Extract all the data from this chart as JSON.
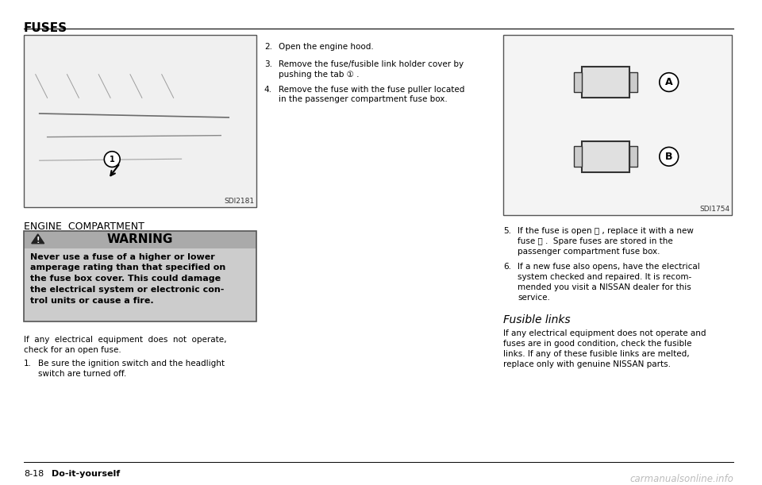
{
  "bg_color": "#ffffff",
  "page_width": 9.6,
  "page_height": 6.11,
  "title": "FUSES",
  "footer_page": "8-18",
  "footer_label": "Do-it-yourself",
  "footer_watermark": "carmanualsonline.info",
  "warning_title": "WARNING",
  "warning_body": "Never use a fuse of a higher or lower\namperage rating than that specified on\nthe fuse box cover. This could damage\nthe electrical system or electronic con-\ntrol units or cause a fire.",
  "engine_label": "ENGINE  COMPARTMENT",
  "left_img_label": "SDI2181",
  "right_img_label": "SDI1754",
  "step2": "Open the engine hood.",
  "step3_line1": "Remove the fuse/fusible link holder cover by",
  "step3_line2": "pushing the tab ① .",
  "step4_line1": "Remove the fuse with the fuse puller located",
  "step4_line2": "in the passenger compartment fuse box.",
  "step5_line1": "If the fuse is open Ⓐ , replace it with a new",
  "step5_line2": "fuse Ⓑ .  Spare fuses are stored in the",
  "step5_line3": "passenger compartment fuse box.",
  "step6_line1": "If a new fuse also opens, have the electrical",
  "step6_line2": "system checked and repaired. It is recom-",
  "step6_line3": "mended you visit a NISSAN dealer for this",
  "step6_line4": "service.",
  "fusible_title": "Fusible links",
  "fusible_body_line1": "If any electrical equipment does not operate and",
  "fusible_body_line2": "fuses are in good condition, check the fusible",
  "fusible_body_line3": "links. If any of these fusible links are melted,",
  "fusible_body_line4": "replace only with genuine NISSAN parts.",
  "para_intro_line1": "If  any  electrical  equipment  does  not  operate,",
  "para_intro_line2": "check for an open fuse.",
  "step1_line1": "Be sure the ignition switch and the headlight",
  "step1_line2": "switch are turned off."
}
